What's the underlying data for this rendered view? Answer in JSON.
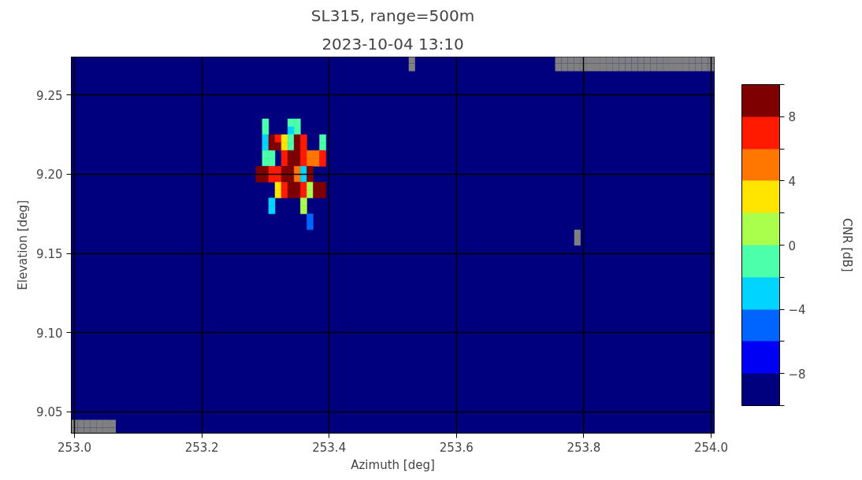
{
  "chart_data": {
    "type": "scatter",
    "marker": "square",
    "title": "SL315, range=500m",
    "subtitle": "2023-10-04 13:10",
    "xlabel": "Azimuth [deg]",
    "ylabel": "Elevation [deg]",
    "clabel": "CNR [dB]",
    "xlim": [
      252.995,
      254.005
    ],
    "ylim": [
      9.0365,
      9.274
    ],
    "xticks": [
      {
        "value": 253.0,
        "label": "253.0"
      },
      {
        "value": 253.2,
        "label": "253.2"
      },
      {
        "value": 253.4,
        "label": "253.4"
      },
      {
        "value": 253.6,
        "label": "253.6"
      },
      {
        "value": 253.8,
        "label": "253.8"
      },
      {
        "value": 254.0,
        "label": "254.0"
      }
    ],
    "yticks": [
      9.05,
      {
        "value": 9.1,
        "label": "9.10"
      },
      9.15,
      {
        "value": 9.2,
        "label": "9.20"
      },
      9.25
    ],
    "clim": [
      -10,
      10
    ],
    "cticks": [
      {
        "value": -10,
        "label": null
      },
      -8,
      {
        "value": -6,
        "label": null
      },
      -4,
      {
        "value": -2,
        "label": null
      },
      0,
      {
        "value": 2,
        "label": null
      },
      4,
      {
        "value": 6,
        "label": null
      },
      8,
      {
        "value": 10,
        "label": null
      }
    ],
    "colors": [
      "#00007f",
      "#0000f5",
      "#0064ff",
      "#00d4ff",
      "#4cffaa",
      "#aaff4d",
      "#ffe500",
      "#ff7700",
      "#ff1a00",
      "#7f0000"
    ],
    "grid": true,
    "bands": [
      {
        "axis": "y",
        "from": 9.0365,
        "to": 9.274,
        "label": null,
        "color": "#00007f"
      }
    ],
    "series": [
      {
        "x": [
          253.3,
          253.34,
          253.35,
          253.3,
          253.34,
          253.35,
          253.3,
          253.31,
          253.32,
          253.33,
          253.34,
          253.35,
          253.36,
          253.39,
          253.3,
          253.31,
          253.32,
          253.33,
          253.34,
          253.35,
          253.36,
          253.39,
          253.3,
          253.31,
          253.33,
          253.34,
          253.35,
          253.36,
          253.37,
          253.38,
          253.39,
          253.3,
          253.31,
          253.33,
          253.34,
          253.35,
          253.36,
          253.37,
          253.38,
          253.39,
          253.29,
          253.3,
          253.31,
          253.32,
          253.33,
          253.34,
          253.35,
          253.36,
          253.37,
          253.29,
          253.3,
          253.31,
          253.32,
          253.33,
          253.34,
          253.35,
          253.36,
          253.37,
          253.32,
          253.33,
          253.34,
          253.35,
          253.36,
          253.37,
          253.38,
          253.39,
          253.32,
          253.33,
          253.34,
          253.35,
          253.36,
          253.37,
          253.38,
          253.39,
          253.31,
          253.36,
          253.31,
          253.36,
          253.37,
          253.37
        ],
        "values": [
          9.2325,
          9.2325,
          9.2325,
          9.2275,
          9.2275,
          9.2275,
          9.2225,
          9.2225,
          9.2225,
          9.2225,
          9.2225,
          9.2225,
          9.2225,
          9.2225,
          9.2175,
          9.2175,
          9.2175,
          9.2175,
          9.2175,
          9.2175,
          9.2175,
          9.2175,
          9.2125,
          9.2125,
          9.2125,
          9.2125,
          9.2125,
          9.2125,
          9.2125,
          9.2125,
          9.2125,
          9.2075,
          9.2075,
          9.2075,
          9.2075,
          9.2075,
          9.2075,
          9.2075,
          9.2075,
          9.2075,
          9.2025,
          9.2025,
          9.2025,
          9.2025,
          9.2025,
          9.2025,
          9.2025,
          9.2025,
          9.2025,
          9.1975,
          9.1975,
          9.1975,
          9.1975,
          9.1975,
          9.1975,
          9.1975,
          9.1975,
          9.1975,
          9.1925,
          9.1925,
          9.1925,
          9.1925,
          9.1925,
          9.1925,
          9.1925,
          9.1925,
          9.1875,
          9.1875,
          9.1875,
          9.1875,
          9.1875,
          9.1875,
          9.1875,
          9.1875,
          9.1825,
          9.1825,
          9.1775,
          9.1775,
          9.1725,
          9.1675
        ],
        "colors": [
          "#4cffaa",
          "#4cffaa",
          "#4cffaa",
          "#4cffaa",
          "#00d4ff",
          "#4cffaa",
          "#00d4ff",
          "#7f0000",
          "#ff1a00",
          "#ffe500",
          "#4cffaa",
          "#7f0000",
          "#ff1a00",
          "#4cffaa",
          "#00d4ff",
          "#7f0000",
          "#7f0000",
          "#ffe500",
          "#4cffaa",
          "#7f0000",
          "#ff1a00",
          "#4cffaa",
          "#4cffaa",
          "#4cffaa",
          "#ff1a00",
          "#7f0000",
          "#7f0000",
          "#ff1a00",
          "#ff7700",
          "#ff7700",
          "#ff1a00",
          "#4cffaa",
          "#4cffaa",
          "#ff1a00",
          "#7f0000",
          "#7f0000",
          "#ff1a00",
          "#ff7700",
          "#ff7700",
          "#ff1a00",
          "#7f0000",
          "#7f0000",
          "#ff1a00",
          "#ff1a00",
          "#7f0000",
          "#7f0000",
          "#ff7700",
          "#00d4ff",
          "#7f0000",
          "#7f0000",
          "#7f0000",
          "#ff1a00",
          "#ff1a00",
          "#7f0000",
          "#7f0000",
          "#ff7700",
          "#00d4ff",
          "#7f0000",
          "#ffe500",
          "#ff1a00",
          "#7f0000",
          "#7f0000",
          "#ff1a00",
          "#aaff4d",
          "#7f0000",
          "#7f0000",
          "#ffe500",
          "#ff1a00",
          "#7f0000",
          "#7f0000",
          "#ff1a00",
          "#aaff4d",
          "#7f0000",
          "#7f0000",
          "#00d4ff",
          "#aaff4d",
          "#00d4ff",
          "#aaff4d",
          "#0064ff",
          "#0064ff"
        ],
        "cvalues": [
          -1,
          -1,
          -1,
          -1,
          -3,
          -1,
          -3,
          9,
          7,
          3,
          -1,
          9,
          7,
          -1,
          -3,
          9,
          9,
          3,
          -1,
          9,
          7,
          -1,
          -1,
          -1,
          7,
          9,
          9,
          7,
          5,
          5,
          7,
          -1,
          -1,
          7,
          9,
          9,
          7,
          5,
          5,
          7,
          9,
          9,
          7,
          7,
          9,
          9,
          5,
          -3,
          9,
          9,
          9,
          7,
          7,
          9,
          9,
          5,
          -3,
          9,
          3,
          7,
          9,
          9,
          7,
          1,
          9,
          9,
          3,
          7,
          9,
          9,
          7,
          1,
          9,
          9,
          -3,
          1,
          -3,
          1,
          -5,
          -5
        ]
      },
      {
        "color": "#808080",
        "x": [
          253.0,
          253.01,
          253.02,
          253.03,
          253.04,
          253.05,
          253.06,
          253.0,
          253.01,
          253.02,
          253.03,
          253.04,
          253.05,
          253.06,
          253.53,
          253.53,
          253.79,
          253.79,
          253.76,
          253.77,
          253.78,
          253.79,
          253.8,
          253.81,
          253.82,
          253.83,
          253.84,
          253.85,
          253.86,
          253.87,
          253.88,
          253.89,
          253.9,
          253.91,
          253.92,
          253.93,
          253.94,
          253.95,
          253.96,
          253.97,
          253.98,
          253.99,
          254.0,
          253.76,
          253.77,
          253.78,
          253.79,
          253.8,
          253.81,
          253.82,
          253.83,
          253.84,
          253.85,
          253.86,
          253.87,
          253.88,
          253.89,
          253.9,
          253.91,
          253.92,
          253.93,
          253.94,
          253.95,
          253.96,
          253.97,
          253.98,
          253.99,
          254.0
        ],
        "values": [
          9.0425,
          9.0425,
          9.0425,
          9.0425,
          9.0425,
          9.0425,
          9.0425,
          9.0375,
          9.0375,
          9.0375,
          9.0375,
          9.0375,
          9.0375,
          9.0375,
          9.2725,
          9.2675,
          9.1625,
          9.1575,
          9.2725,
          9.2725,
          9.2725,
          9.2725,
          9.2725,
          9.2725,
          9.2725,
          9.2725,
          9.2725,
          9.2725,
          9.2725,
          9.2725,
          9.2725,
          9.2725,
          9.2725,
          9.2725,
          9.2725,
          9.2725,
          9.2725,
          9.2725,
          9.2725,
          9.2725,
          9.2725,
          9.2725,
          9.2725,
          9.2675,
          9.2675,
          9.2675,
          9.2675,
          9.2675,
          9.2675,
          9.2675,
          9.2675,
          9.2675,
          9.2675,
          9.2675,
          9.2675,
          9.2675,
          9.2675,
          9.2675,
          9.2675,
          9.2675,
          9.2675,
          9.2675,
          9.2675,
          9.2675,
          9.2675,
          9.2675,
          9.2675,
          9.2675
        ]
      }
    ]
  }
}
